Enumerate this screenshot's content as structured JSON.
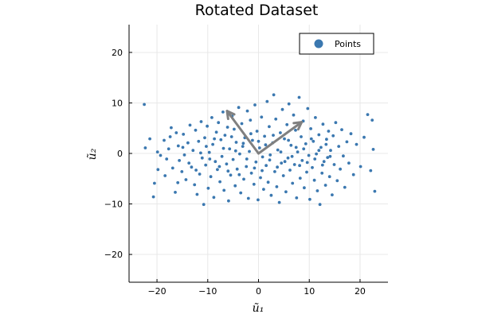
{
  "chart_data": {
    "type": "scatter",
    "title": "Rotated Dataset",
    "xlabel": "ũ₁",
    "ylabel": "ũ₂",
    "xlim": [
      -25.5,
      25.5
    ],
    "ylim": [
      -25.5,
      25.5
    ],
    "xticks": [
      -20,
      -10,
      0,
      10,
      20
    ],
    "yticks": [
      -20,
      -10,
      0,
      10,
      20
    ],
    "xtick_labels": [
      "−20",
      "−10",
      "0",
      "10",
      "20"
    ],
    "ytick_labels": [
      "−20",
      "−10",
      "0",
      "10",
      "20"
    ],
    "grid": true,
    "legend_position": "top-right",
    "colors": {
      "points": "#3b78b0",
      "arrows": "#808080",
      "grid": "#e8e8e8"
    },
    "series": [
      {
        "name": "Points",
        "points": [
          [
            -22.5,
            9.7
          ],
          [
            -22.3,
            1.1
          ],
          [
            -20.7,
            -8.6
          ],
          [
            -20.5,
            -5.9
          ],
          [
            -19.8,
            -3.2
          ],
          [
            -19.3,
            -0.4
          ],
          [
            -18.6,
            2.6
          ],
          [
            -18.1,
            -1.1
          ],
          [
            -17.7,
            0.9
          ],
          [
            -17.4,
            3.3
          ],
          [
            -16.9,
            -2.9
          ],
          [
            -16.4,
            -7.7
          ],
          [
            -16.2,
            4.1
          ],
          [
            -15.8,
            1.5
          ],
          [
            -15.6,
            -1.4
          ],
          [
            -15.1,
            -3.6
          ],
          [
            -14.8,
            3.8
          ],
          [
            -14.6,
            -0.3
          ],
          [
            -14.3,
            -5.2
          ],
          [
            -13.9,
            2.1
          ],
          [
            -13.5,
            5.6
          ],
          [
            -13.2,
            -2.7
          ],
          [
            -12.9,
            0.6
          ],
          [
            -12.6,
            -6.2
          ],
          [
            -12.4,
            4.6
          ],
          [
            -12.1,
            -8.1
          ],
          [
            -11.8,
            2.4
          ],
          [
            -11.6,
            -4.1
          ],
          [
            -11.3,
            6.3
          ],
          [
            -11.1,
            -0.9
          ],
          [
            -10.8,
            -10.1
          ],
          [
            -10.6,
            3.1
          ],
          [
            -10.4,
            -2.3
          ],
          [
            -10.1,
            5.4
          ],
          [
            -9.9,
            -6.9
          ],
          [
            -9.7,
            0.2
          ],
          [
            -9.4,
            -4.6
          ],
          [
            -9.2,
            7.1
          ],
          [
            -9.0,
            1.8
          ],
          [
            -8.8,
            -8.7
          ],
          [
            -8.5,
            -1.6
          ],
          [
            -8.3,
            4.2
          ],
          [
            -8.1,
            -3.2
          ],
          [
            -7.9,
            6.1
          ],
          [
            -7.6,
            -5.6
          ],
          [
            -7.4,
            2.7
          ],
          [
            -7.2,
            -0.6
          ],
          [
            -7.0,
            8.2
          ],
          [
            -6.8,
            -7.3
          ],
          [
            -6.6,
            3.6
          ],
          [
            -6.3,
            -2.1
          ],
          [
            -6.1,
            5.2
          ],
          [
            -5.9,
            -9.4
          ],
          [
            -5.7,
            0.9
          ],
          [
            -5.5,
            -4.3
          ],
          [
            -5.2,
            7.4
          ],
          [
            -5.0,
            -1.2
          ],
          [
            -4.8,
            4.8
          ],
          [
            -4.6,
            -6.4
          ],
          [
            -4.4,
            2.2
          ],
          [
            -4.2,
            -3.1
          ],
          [
            -3.9,
            9.1
          ],
          [
            -3.7,
            -0.1
          ],
          [
            -3.5,
            -7.8
          ],
          [
            -3.3,
            5.9
          ],
          [
            -3.1,
            1.4
          ],
          [
            -2.9,
            -5.1
          ],
          [
            -2.7,
            3.1
          ],
          [
            -2.4,
            -2.6
          ],
          [
            -2.2,
            8.4
          ],
          [
            -2.0,
            -8.9
          ],
          [
            -1.8,
            0.4
          ],
          [
            -1.6,
            6.6
          ],
          [
            -1.4,
            -3.9
          ],
          [
            -1.2,
            2.6
          ],
          [
            -0.9,
            -6.1
          ],
          [
            -0.7,
            9.6
          ],
          [
            -0.5,
            -1.7
          ],
          [
            -0.3,
            4.4
          ],
          [
            -0.1,
            -9.2
          ],
          [
            0.2,
            1.1
          ],
          [
            0.4,
            -4.8
          ],
          [
            0.6,
            7.2
          ],
          [
            0.8,
            -0.7
          ],
          [
            1.0,
            -7.1
          ],
          [
            1.2,
            3.4
          ],
          [
            1.5,
            -2.4
          ],
          [
            1.7,
            10.3
          ],
          [
            1.9,
            -5.7
          ],
          [
            2.1,
            5.3
          ],
          [
            2.3,
            -0.3
          ],
          [
            2.5,
            -8.3
          ],
          [
            2.8,
            2.1
          ],
          [
            3.0,
            11.6
          ],
          [
            3.2,
            -3.6
          ],
          [
            3.4,
            6.8
          ],
          [
            3.6,
            -6.6
          ],
          [
            3.8,
            0.7
          ],
          [
            4.1,
            -9.7
          ],
          [
            4.3,
            4.1
          ],
          [
            4.5,
            -1.9
          ],
          [
            4.7,
            8.7
          ],
          [
            4.9,
            -4.4
          ],
          [
            5.1,
            2.9
          ],
          [
            5.4,
            -7.6
          ],
          [
            5.6,
            5.7
          ],
          [
            5.8,
            -0.9
          ],
          [
            6.0,
            9.8
          ],
          [
            6.2,
            -3.3
          ],
          [
            6.4,
            1.6
          ],
          [
            6.7,
            -5.9
          ],
          [
            6.9,
            7.6
          ],
          [
            7.1,
            -2.2
          ],
          [
            7.3,
            4.6
          ],
          [
            7.5,
            -8.8
          ],
          [
            7.7,
            0.3
          ],
          [
            8.0,
            11.1
          ],
          [
            8.2,
            -4.9
          ],
          [
            8.4,
            3.3
          ],
          [
            8.6,
            -1.4
          ],
          [
            8.8,
            6.4
          ],
          [
            9.0,
            -6.8
          ],
          [
            9.3,
            1.9
          ],
          [
            9.5,
            -3.7
          ],
          [
            9.7,
            8.9
          ],
          [
            9.9,
            -0.4
          ],
          [
            10.1,
            -9.1
          ],
          [
            10.3,
            4.9
          ],
          [
            10.6,
            -2.8
          ],
          [
            10.8,
            2.4
          ],
          [
            11.0,
            -5.3
          ],
          [
            11.2,
            7.1
          ],
          [
            11.4,
            -0.1
          ],
          [
            11.6,
            -7.4
          ],
          [
            11.9,
            3.7
          ],
          [
            12.1,
            -10.1
          ],
          [
            12.3,
            1.2
          ],
          [
            12.5,
            -3.9
          ],
          [
            12.7,
            5.8
          ],
          [
            12.9,
            -1.6
          ],
          [
            13.2,
            -6.3
          ],
          [
            13.4,
            2.8
          ],
          [
            13.6,
            -0.8
          ],
          [
            13.8,
            4.4
          ],
          [
            14.0,
            -4.6
          ],
          [
            14.2,
            0.6
          ],
          [
            14.5,
            -8.2
          ],
          [
            14.7,
            3.5
          ],
          [
            14.9,
            -2.2
          ],
          [
            15.2,
            6.1
          ],
          [
            15.5,
            -5.4
          ],
          [
            15.8,
            1.4
          ],
          [
            16.1,
            -3.1
          ],
          [
            16.4,
            4.7
          ],
          [
            16.7,
            -0.5
          ],
          [
            17.0,
            -6.7
          ],
          [
            17.4,
            2.3
          ],
          [
            17.8,
            -1.9
          ],
          [
            18.2,
            3.9
          ],
          [
            18.7,
            -4.2
          ],
          [
            19.3,
            1.8
          ],
          [
            20.1,
            -2.6
          ],
          [
            20.8,
            3.2
          ],
          [
            21.5,
            7.7
          ],
          [
            22.1,
            -3.4
          ],
          [
            22.4,
            6.6
          ],
          [
            22.6,
            0.8
          ],
          [
            22.9,
            -7.5
          ],
          [
            -21.4,
            2.9
          ],
          [
            -19.9,
            0.3
          ],
          [
            -18.4,
            -4.4
          ],
          [
            -17.2,
            5.1
          ],
          [
            -15.9,
            -5.8
          ],
          [
            -14.9,
            1.2
          ],
          [
            -13.7,
            -1.9
          ],
          [
            -12.3,
            -3.3
          ],
          [
            -11.4,
            0.1
          ],
          [
            -10.3,
            1.4
          ],
          [
            -9.6,
            -1.1
          ],
          [
            -8.7,
            2.9
          ],
          [
            -7.7,
            -2.6
          ],
          [
            -6.9,
            1.0
          ],
          [
            -6.0,
            -3.5
          ],
          [
            -5.3,
            3.3
          ],
          [
            -4.5,
            0.5
          ],
          [
            -3.8,
            -4.2
          ],
          [
            -3.0,
            2.0
          ],
          [
            -2.3,
            -1.1
          ],
          [
            -1.5,
            3.9
          ],
          [
            -0.8,
            -2.9
          ],
          [
            0.0,
            2.4
          ],
          [
            0.7,
            -3.4
          ],
          [
            1.4,
            1.7
          ],
          [
            2.2,
            -1.3
          ],
          [
            2.9,
            3.6
          ],
          [
            3.7,
            -2.7
          ],
          [
            4.4,
            0.3
          ],
          [
            5.2,
            -1.6
          ],
          [
            5.9,
            2.6
          ],
          [
            6.6,
            -0.6
          ],
          [
            7.4,
            1.2
          ],
          [
            8.1,
            -2.4
          ],
          [
            8.9,
            0.9
          ],
          [
            9.6,
            -1.8
          ],
          [
            10.4,
            2.9
          ],
          [
            11.1,
            -1.1
          ],
          [
            11.9,
            0.6
          ],
          [
            12.6,
            -2.3
          ],
          [
            13.3,
            1.8
          ],
          [
            14.1,
            -0.6
          ]
        ]
      }
    ],
    "arrows": [
      {
        "from": [
          0,
          0
        ],
        "to": [
          -6.2,
          8.4
        ]
      },
      {
        "from": [
          0,
          0
        ],
        "to": [
          8.5,
          6.2
        ]
      }
    ]
  }
}
